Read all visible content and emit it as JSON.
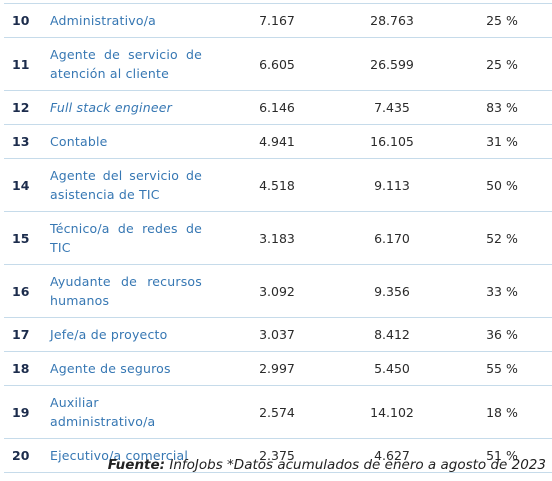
{
  "table": {
    "rows": [
      [
        "10",
        "Administrativo/a",
        "7.167",
        "28.763",
        "25 %"
      ],
      [
        "11",
        "Agente de servicio de atención al cliente",
        "6.605",
        "26.599",
        "25 %"
      ],
      [
        "12",
        "Full stack engineer",
        "6.146",
        "7.435",
        "83 %"
      ],
      [
        "13",
        "Contable",
        "4.941",
        "16.105",
        "31 %"
      ],
      [
        "14",
        "Agente del servicio de asistencia de TIC",
        "4.518",
        "9.113",
        "50 %"
      ],
      [
        "15",
        "Técnico/a de redes de TIC",
        "3.183",
        "6.170",
        "52 %"
      ],
      [
        "16",
        "Ayudante de recursos humanos",
        "3.092",
        "9.356",
        "33 %"
      ],
      [
        "17",
        "Jefe/a de proyecto",
        "3.037",
        "8.412",
        "36 %"
      ],
      [
        "18",
        "Agente de seguros",
        "2.997",
        "5.450",
        "55 %"
      ],
      [
        "19",
        "Auxiliar administrativo/a",
        "2.574",
        "14.102",
        "18 %"
      ],
      [
        "20",
        "Ejecutivo/a comercial",
        "2.375",
        "4.627",
        "51 %"
      ]
    ]
  },
  "footer": {
    "label": "Fuente:",
    "text": " InfoJobs *Datos acumulados de enero a agosto de 2023"
  }
}
